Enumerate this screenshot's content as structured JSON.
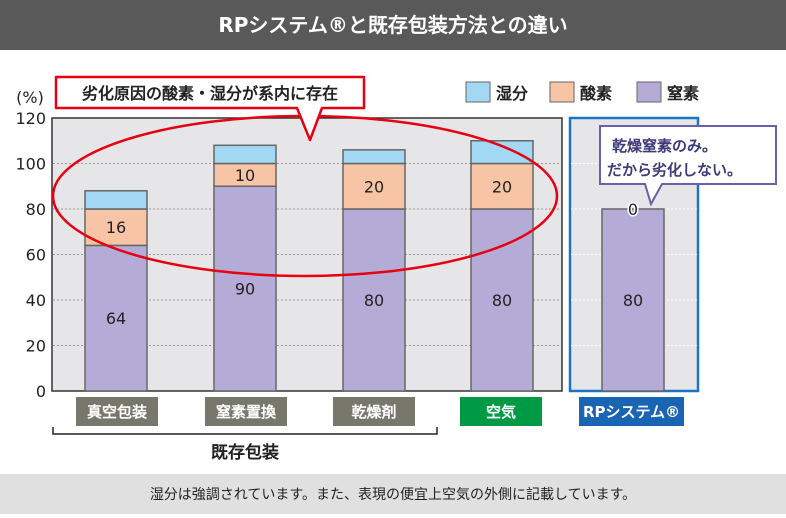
{
  "header": {
    "title": "RPシステム®と既存包装方法との違い"
  },
  "footer": {
    "note": "湿分は強調されています。また、表現の便宜上空気の外側に記載しています。"
  },
  "callouts": {
    "existing": "劣化原因の酸素・湿分が系内に存在",
    "rp_line1": "乾燥窒素のみ。",
    "rp_line2": "だから劣化しない。"
  },
  "group_label": "既存包装",
  "colors": {
    "moisture": "#a3d8f4",
    "oxygen": "#f7c4a5",
    "nitrogen": "#b4acd6",
    "header": "#595959",
    "existing_label": "#77776b",
    "air_label": "#009944",
    "rp": "#1a64b4",
    "highlight": "#e60012",
    "callout_rp": "#6a5fa8"
  },
  "chart_data": {
    "type": "bar",
    "stacked": true,
    "ylabel": "(%)",
    "ylim": [
      0,
      120
    ],
    "yticks": [
      0,
      20,
      40,
      60,
      80,
      100,
      120
    ],
    "grid": true,
    "legend_placement": "top-right",
    "categories": [
      "真空包装",
      "窒素置換",
      "乾燥剤",
      "空気",
      "RPシステム®"
    ],
    "series": [
      {
        "name": "窒素",
        "values": [
          64,
          90,
          80,
          80,
          80
        ],
        "labels": [
          "64",
          "90",
          "80",
          "80",
          "80"
        ]
      },
      {
        "name": "酸素",
        "values": [
          16,
          10,
          20,
          20,
          0
        ],
        "labels": [
          "16",
          "10",
          "20",
          "20",
          "0"
        ]
      },
      {
        "name": "湿分",
        "values": [
          8,
          8,
          6,
          10,
          0
        ]
      }
    ],
    "legend": [
      "湿分",
      "酸素",
      "窒素"
    ]
  }
}
